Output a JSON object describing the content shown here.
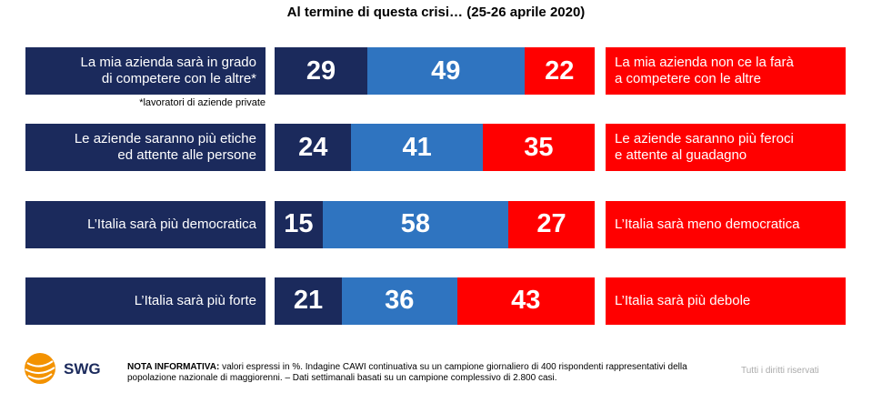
{
  "chart_data": {
    "type": "bar",
    "stacked": true,
    "orientation": "horizontal",
    "title": "Al termine di questa crisi… (25-26 aprile 2020)",
    "categories": [
      "La mia azienda sarà in grado\ndi competere con le altre*",
      "Le aziende saranno più etiche\ned attente alle persone",
      "L’Italia sarà più democratica",
      "L’Italia sarà più forte"
    ],
    "right_labels": [
      "La mia azienda non ce la farà\na competere con le altre",
      "Le aziende saranno più feroci\ne attente al guadagno",
      "L’Italia sarà meno democratica",
      "L’Italia sarà più debole"
    ],
    "series": [
      {
        "color": "#1b2a5c",
        "values": [
          29,
          24,
          15,
          21
        ]
      },
      {
        "color": "#2f74c0",
        "values": [
          49,
          41,
          58,
          36
        ]
      },
      {
        "color": "#ff0000",
        "values": [
          22,
          35,
          27,
          43
        ]
      }
    ],
    "xlim": [
      0,
      100
    ],
    "left_color": "#1b2a5c",
    "right_color": "#ff0000",
    "annotation": "*lavoratori di aziende private"
  },
  "footer": {
    "logo": "SWG",
    "note_bold": "NOTA INFORMATIVA:",
    "note": "valori espressi in %. Indagine CAWI continuativa su un campione giornaliero di 400 rispondenti rappresentativi della popolazione nazionale di maggiorenni. – Dati settimanali basati su un campione complessivo di 2.800 casi.",
    "rights": "Tutti i diritti riservati"
  }
}
